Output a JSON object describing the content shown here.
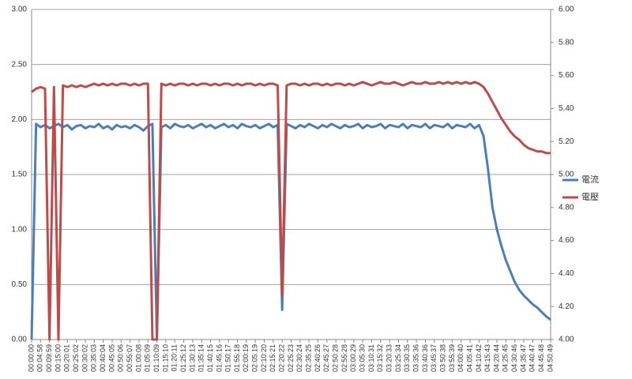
{
  "chart_data": {
    "type": "line",
    "categories": [
      "00:00:00",
      null,
      "00:04:58",
      null,
      "00:09:59",
      null,
      "00:15:00",
      null,
      "00:20:01",
      null,
      "00:25:02",
      null,
      "00:30:02",
      null,
      "00:35:03",
      null,
      "00:40:04",
      null,
      "00:45:05",
      null,
      "00:50:06",
      null,
      "00:55:07",
      null,
      "01:00:08",
      null,
      "01:05:09",
      null,
      "01:10:09",
      null,
      "01:15:10",
      null,
      "01:20:11",
      null,
      "01:25:12",
      null,
      "01:30:13",
      null,
      "01:35:14",
      null,
      "01:40:15",
      null,
      "01:45:16",
      null,
      "01:50:17",
      null,
      "01:55:18",
      null,
      "02:00:19",
      null,
      "02:05:19",
      null,
      "02:10:20",
      null,
      "02:15:21",
      null,
      "02:20:22",
      null,
      "02:25:23",
      null,
      "02:30:24",
      null,
      "02:35:25",
      null,
      "02:40:26",
      null,
      "02:45:27",
      null,
      "02:50:28",
      null,
      "02:55:28",
      null,
      "03:00:29",
      null,
      "03:05:30",
      null,
      "03:10:31",
      null,
      "03:15:32",
      null,
      "03:20:33",
      null,
      "03:25:34",
      null,
      "03:30:35",
      null,
      "03:35:36",
      null,
      "03:40:36",
      null,
      "03:45:37",
      null,
      "03:50:38",
      null,
      "03:55:39",
      null,
      "04:00:40",
      null,
      "04:05:41",
      null,
      "04:10:42",
      null,
      "04:15:43",
      null,
      "04:20:44",
      null,
      "04:25:45",
      null,
      "04:30:46",
      null,
      "04:35:47",
      null,
      "04:40:47",
      null,
      "04:45:48",
      null,
      "04:50:49"
    ],
    "series": [
      {
        "name": "電流",
        "color": "#4a7ebb",
        "values": [
          0,
          1.96,
          1.93,
          1.95,
          1.92,
          1.94,
          1.96,
          1.93,
          1.95,
          1.91,
          1.94,
          1.95,
          1.92,
          1.94,
          1.93,
          1.96,
          1.92,
          1.94,
          1.91,
          1.95,
          1.93,
          1.94,
          1.92,
          1.95,
          1.93,
          1.9,
          1.94,
          1.96,
          0,
          1.93,
          1.95,
          1.92,
          1.96,
          1.94,
          1.93,
          1.95,
          1.92,
          1.94,
          1.96,
          1.93,
          1.95,
          1.92,
          1.94,
          1.96,
          1.93,
          1.95,
          1.92,
          1.96,
          1.94,
          1.93,
          1.95,
          1.92,
          1.94,
          1.96,
          1.93,
          1.95,
          0.27,
          1.96,
          1.94,
          1.92,
          1.95,
          1.93,
          1.96,
          1.94,
          1.92,
          1.95,
          1.93,
          1.96,
          1.94,
          1.92,
          1.95,
          1.93,
          1.94,
          1.96,
          1.92,
          1.95,
          1.93,
          1.94,
          1.96,
          1.92,
          1.95,
          1.94,
          1.93,
          1.96,
          1.92,
          1.95,
          1.94,
          1.93,
          1.96,
          1.92,
          1.95,
          1.94,
          1.93,
          1.96,
          1.92,
          1.95,
          1.94,
          1.93,
          1.96,
          1.92,
          1.95,
          1.85,
          1.55,
          1.2,
          1.0,
          0.85,
          0.72,
          0.62,
          0.52,
          0.45,
          0.4,
          0.36,
          0.32,
          0.29,
          0.25,
          0.21,
          0.18
        ]
      },
      {
        "name": "電壓",
        "color": "#be4b48",
        "axis": "y2",
        "values": [
          5.5,
          5.52,
          5.53,
          5.52,
          4.0,
          5.53,
          4.0,
          5.54,
          5.53,
          5.54,
          5.53,
          5.54,
          5.53,
          5.54,
          5.55,
          5.54,
          5.55,
          5.54,
          5.55,
          5.54,
          5.55,
          5.55,
          5.54,
          5.55,
          5.54,
          5.55,
          5.55,
          4.0,
          4.0,
          5.55,
          5.54,
          5.55,
          5.54,
          5.55,
          5.55,
          5.54,
          5.55,
          5.54,
          5.55,
          5.55,
          5.54,
          5.55,
          5.54,
          5.55,
          5.55,
          5.54,
          5.55,
          5.54,
          5.55,
          5.55,
          5.54,
          5.55,
          5.54,
          5.55,
          5.55,
          5.54,
          4.27,
          5.54,
          5.55,
          5.55,
          5.54,
          5.55,
          5.54,
          5.55,
          5.55,
          5.54,
          5.55,
          5.54,
          5.55,
          5.55,
          5.54,
          5.55,
          5.54,
          5.55,
          5.56,
          5.55,
          5.54,
          5.55,
          5.56,
          5.55,
          5.55,
          5.56,
          5.55,
          5.54,
          5.55,
          5.56,
          5.55,
          5.55,
          5.56,
          5.55,
          5.55,
          5.56,
          5.55,
          5.56,
          5.55,
          5.56,
          5.55,
          5.56,
          5.55,
          5.56,
          5.55,
          5.53,
          5.49,
          5.44,
          5.39,
          5.34,
          5.3,
          5.26,
          5.23,
          5.21,
          5.18,
          5.16,
          5.15,
          5.14,
          5.14,
          5.13,
          5.13
        ]
      }
    ],
    "ylim": [
      0,
      3
    ],
    "yticks": [
      {
        "value": 0,
        "label": "0.00"
      },
      {
        "value": 0.5,
        "label": "0.50"
      },
      {
        "value": 1,
        "label": "1.00"
      },
      {
        "value": 1.5,
        "label": "1.50"
      },
      {
        "value": 2,
        "label": "2.00"
      },
      {
        "value": 2.5,
        "label": "2.50"
      },
      {
        "value": 3,
        "label": "3.00"
      }
    ],
    "y2lim": [
      4,
      6
    ],
    "y2ticks": [
      {
        "value": 4,
        "label": "4.00"
      },
      {
        "value": 4.2,
        "label": "4.20"
      },
      {
        "value": 4.4,
        "label": "4.40"
      },
      {
        "value": 4.6,
        "label": "4.60"
      },
      {
        "value": 4.8,
        "label": "4.80"
      },
      {
        "value": 5,
        "label": "5.00"
      },
      {
        "value": 5.2,
        "label": "5.20"
      },
      {
        "value": 5.4,
        "label": "5.40"
      },
      {
        "value": 5.6,
        "label": "5.60"
      },
      {
        "value": 5.8,
        "label": "5.80"
      },
      {
        "value": 6,
        "label": "6.00"
      }
    ],
    "grid": true,
    "legend": "right"
  }
}
